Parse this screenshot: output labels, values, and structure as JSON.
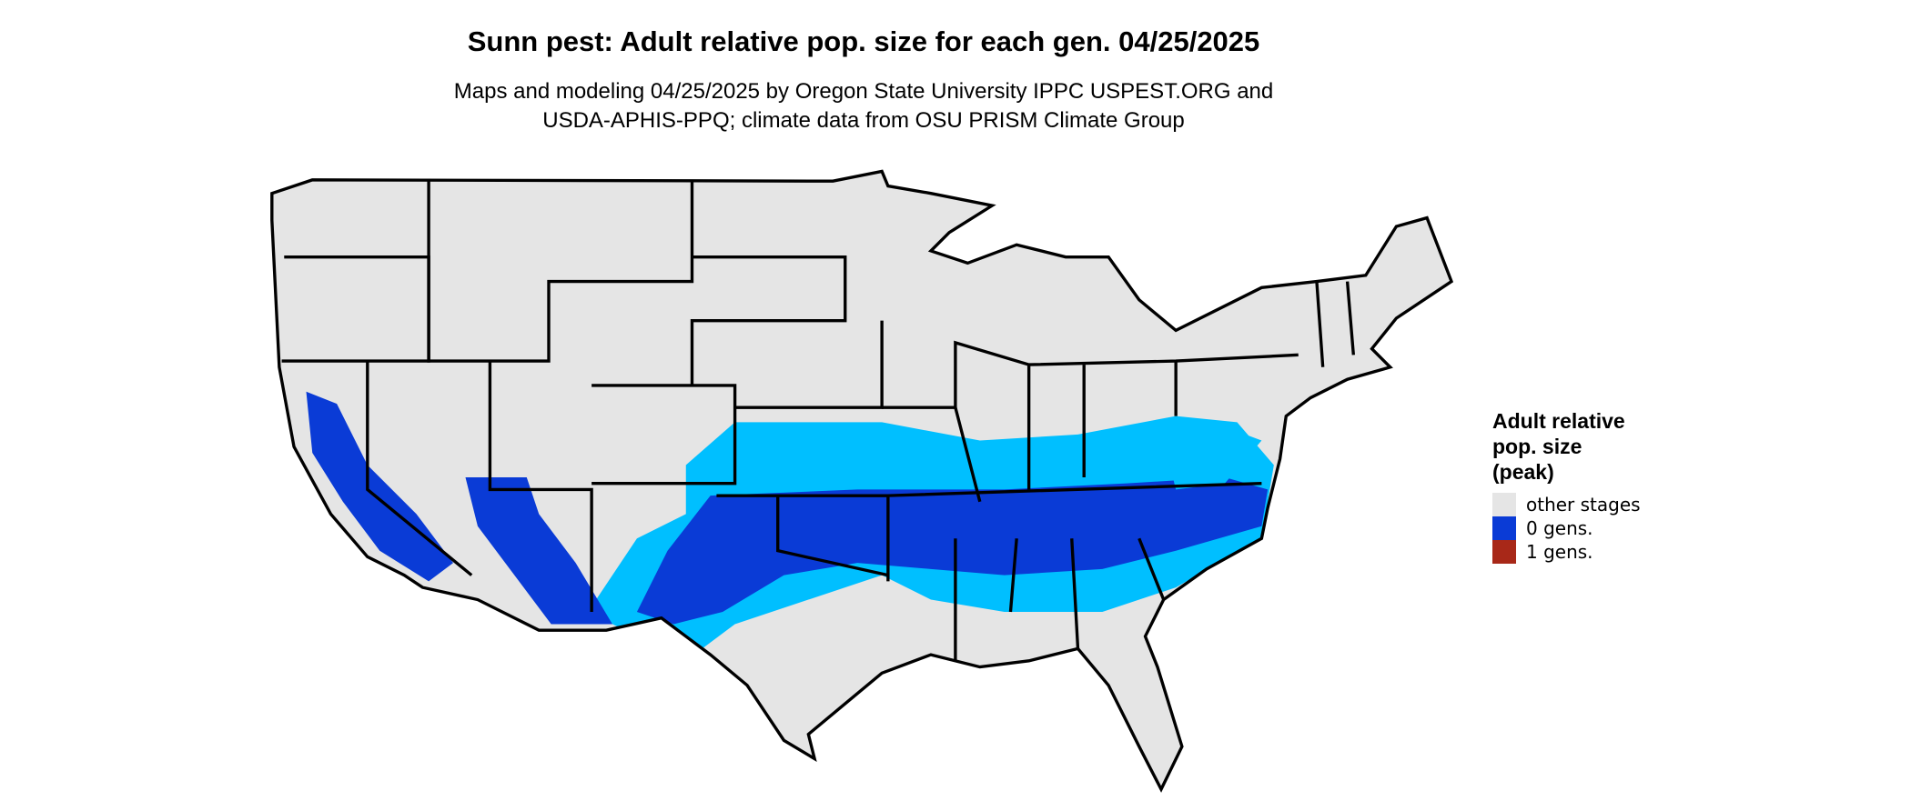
{
  "title": "Sunn pest: Adult relative pop. size for each gen. 04/25/2025",
  "subtitle": [
    "Maps and modeling 04/25/2025 by Oregon State University IPPC USPEST.ORG and",
    "USDA-APHIS-PPQ; climate data from OSU PRISM Climate Group"
  ],
  "legend": {
    "title": [
      "Adult relative",
      "pop. size",
      "(peak)"
    ],
    "items": [
      {
        "label": "other stages",
        "color": "#e5e5e5"
      },
      {
        "label": "0 gens.",
        "color": "#0a3bd6"
      },
      {
        "label": "1 gens.",
        "color": "#a82818"
      }
    ]
  }
}
